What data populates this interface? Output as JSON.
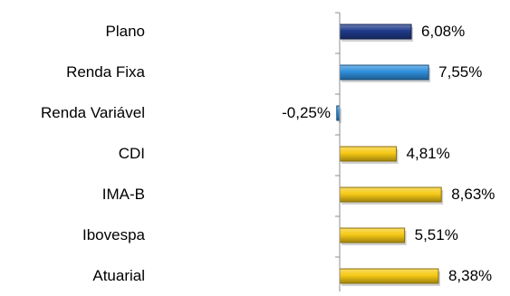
{
  "chart_data": {
    "type": "bar",
    "orientation": "horizontal",
    "title": "",
    "xlabel": "",
    "ylabel": "",
    "grid": false,
    "legend": "none",
    "value_suffix": "%",
    "decimal_separator": ",",
    "categories": [
      "Plano",
      "Renda Fixa",
      "Renda Variável",
      "CDI",
      "IMA-B",
      "Ibovespa",
      "Atuarial"
    ],
    "values": [
      6.08,
      7.55,
      -0.25,
      4.81,
      8.63,
      5.51,
      8.38
    ],
    "data_labels": [
      "6,08%",
      "7,55%",
      "-0,25%",
      "4,81%",
      "8,63%",
      "5,51%",
      "8,38%"
    ],
    "bar_colors": [
      "#1f3a8a",
      "#2f8fdc",
      "#2f8fdc",
      "#f6c915",
      "#f6c915",
      "#f6c915",
      "#f6c915"
    ],
    "xlim": [
      -0.25,
      8.63
    ]
  }
}
